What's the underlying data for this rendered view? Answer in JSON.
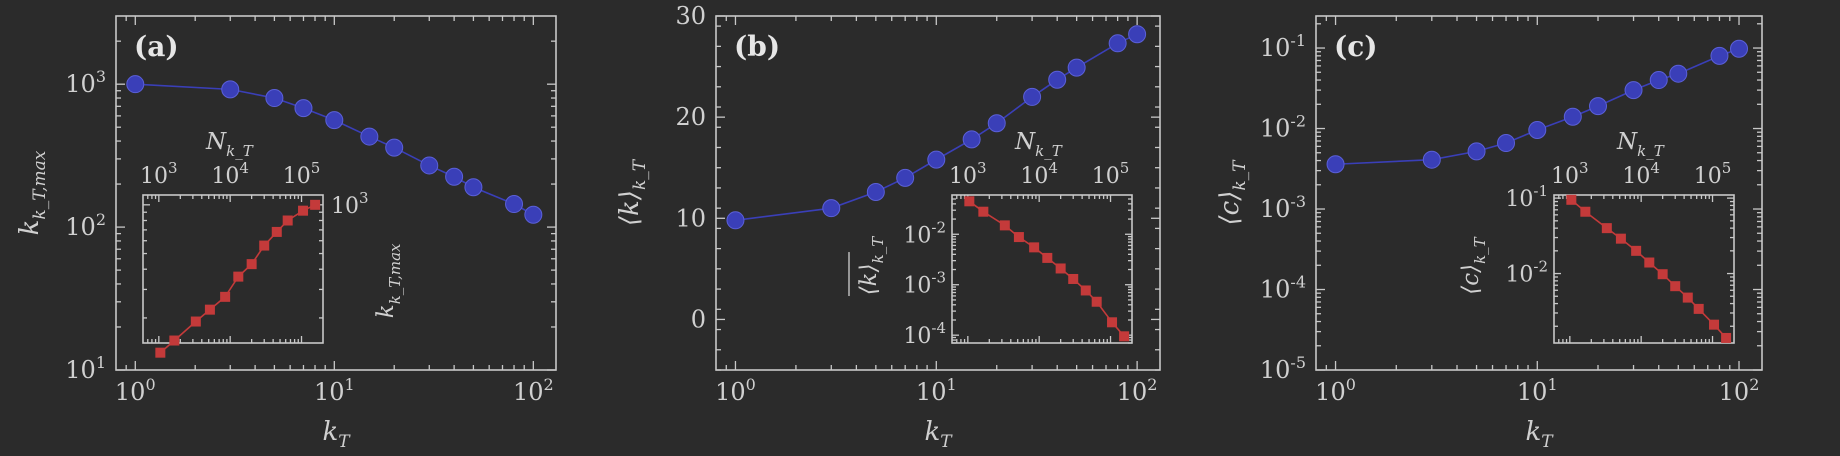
{
  "colors": {
    "main_series": "#3a3fb8",
    "inset_series": "#c43a3a",
    "background": "#2b2b2b",
    "axes": "#c8c8c8",
    "text": "#d0d0d0"
  },
  "chart_data": [
    {
      "type": "line",
      "panel_label": "(a)",
      "xlabel": "k_T",
      "ylabel": "k_{k_T,max}",
      "xscale": "log",
      "yscale": "log",
      "xlim": [
        0.8,
        130
      ],
      "ylim": [
        10,
        3000
      ],
      "x_ticks": [
        1,
        10,
        100
      ],
      "x_tick_labels": [
        "10^0",
        "10^1",
        "10^2"
      ],
      "y_ticks": [
        10,
        100,
        1000
      ],
      "y_tick_labels": [
        "10^1",
        "10^2",
        "10^3"
      ],
      "x": [
        1,
        3,
        5,
        7,
        10,
        15,
        20,
        30,
        40,
        50,
        80,
        100
      ],
      "y": [
        1000,
        920,
        800,
        680,
        560,
        430,
        360,
        270,
        225,
        190,
        145,
        122
      ],
      "inset": {
        "type": "line",
        "xlabel": "N_{k_T}",
        "xlabel_position": "top",
        "ylabel": "k_{k_T,max}",
        "ylabel_position": "right",
        "xscale": "log",
        "yscale": "log",
        "xlim": [
          600,
          200000
        ],
        "ylim": [
          140,
          1150
        ],
        "x_ticks": [
          1000,
          10000,
          100000
        ],
        "x_tick_labels": [
          "10^3",
          "10^4",
          "10^5"
        ],
        "y_ticks": [
          1000
        ],
        "y_tick_labels": [
          "10^3"
        ],
        "x": [
          155000,
          105000,
          64000,
          45000,
          30000,
          20000,
          13000,
          8500,
          5200,
          3300,
          1650,
          1050
        ],
        "y": [
          1000,
          920,
          800,
          680,
          560,
          430,
          360,
          270,
          225,
          190,
          145,
          122
        ]
      }
    },
    {
      "type": "line",
      "panel_label": "(b)",
      "xlabel": "k_T",
      "ylabel": "⟨k⟩_{k_T}",
      "xscale": "log",
      "yscale": "linear",
      "xlim": [
        0.8,
        130
      ],
      "ylim": [
        -5,
        30
      ],
      "x_ticks": [
        1,
        10,
        100
      ],
      "x_tick_labels": [
        "10^0",
        "10^1",
        "10^2"
      ],
      "y_ticks": [
        0,
        10,
        20,
        30
      ],
      "y_tick_labels": [
        "0",
        "10",
        "20",
        "30"
      ],
      "x": [
        1,
        3,
        5,
        7,
        10,
        15,
        20,
        30,
        40,
        50,
        80,
        100
      ],
      "y": [
        9.8,
        11.0,
        12.6,
        14.0,
        15.8,
        17.8,
        19.4,
        22.0,
        23.7,
        24.9,
        27.3,
        28.2
      ],
      "inset": {
        "type": "line",
        "xlabel": "N_{k_T}",
        "xlabel_position": "top",
        "ylabel": "⟨k⟩_{k_T} (overlined)",
        "ylabel_position": "left",
        "xscale": "log",
        "yscale": "log",
        "xlim": [
          600,
          200000
        ],
        "ylim": [
          7e-05,
          0.06
        ],
        "x_ticks": [
          1000,
          10000,
          100000
        ],
        "x_tick_labels": [
          "10^3",
          "10^4",
          "10^5"
        ],
        "y_ticks": [
          0.0001,
          0.001,
          0.01
        ],
        "y_tick_labels": [
          "10^-4",
          "10^-3",
          "10^-2"
        ],
        "x": [
          1050,
          1650,
          3300,
          5200,
          8500,
          13000,
          20000,
          30000,
          45000,
          64000,
          105000,
          155000
        ],
        "y": [
          0.045,
          0.028,
          0.015,
          0.0088,
          0.0055,
          0.0034,
          0.0021,
          0.0013,
          0.00077,
          0.00046,
          0.00018,
          9.5e-05
        ]
      }
    },
    {
      "type": "line",
      "panel_label": "(c)",
      "xlabel": "k_T",
      "ylabel": "⟨c⟩_{k_T}",
      "xscale": "log",
      "yscale": "log",
      "xlim": [
        0.8,
        130
      ],
      "ylim": [
        1e-05,
        0.25
      ],
      "x_ticks": [
        1,
        10,
        100
      ],
      "x_tick_labels": [
        "10^0",
        "10^1",
        "10^2"
      ],
      "y_ticks": [
        1e-05,
        0.0001,
        0.001,
        0.01,
        0.1
      ],
      "y_tick_labels": [
        "10^-5",
        "10^-4",
        "10^-3",
        "10^-2",
        "10^-1"
      ],
      "x": [
        1,
        3,
        5,
        7,
        10,
        15,
        20,
        30,
        40,
        50,
        80,
        100
      ],
      "y": [
        0.0036,
        0.0041,
        0.0052,
        0.0066,
        0.0096,
        0.014,
        0.019,
        0.03,
        0.04,
        0.048,
        0.08,
        0.098
      ],
      "inset": {
        "type": "line",
        "xlabel": "N_{k_T}",
        "xlabel_position": "top",
        "ylabel": "⟨c⟩_{k_T}",
        "ylabel_position": "left",
        "xscale": "log",
        "yscale": "log",
        "xlim": [
          600,
          200000
        ],
        "ylim": [
          0.0012,
          0.11
        ],
        "x_ticks": [
          1000,
          10000,
          100000
        ],
        "x_tick_labels": [
          "10^3",
          "10^4",
          "10^5"
        ],
        "y_ticks": [
          0.01,
          0.1
        ],
        "y_tick_labels": [
          "10^-2",
          "10^-1"
        ],
        "x": [
          1050,
          1650,
          3300,
          5200,
          8500,
          13000,
          20000,
          30000,
          45000,
          64000,
          105000,
          155000
        ],
        "y": [
          0.095,
          0.066,
          0.04,
          0.029,
          0.02,
          0.014,
          0.0098,
          0.0068,
          0.0048,
          0.0034,
          0.0021,
          0.0014
        ]
      }
    }
  ]
}
